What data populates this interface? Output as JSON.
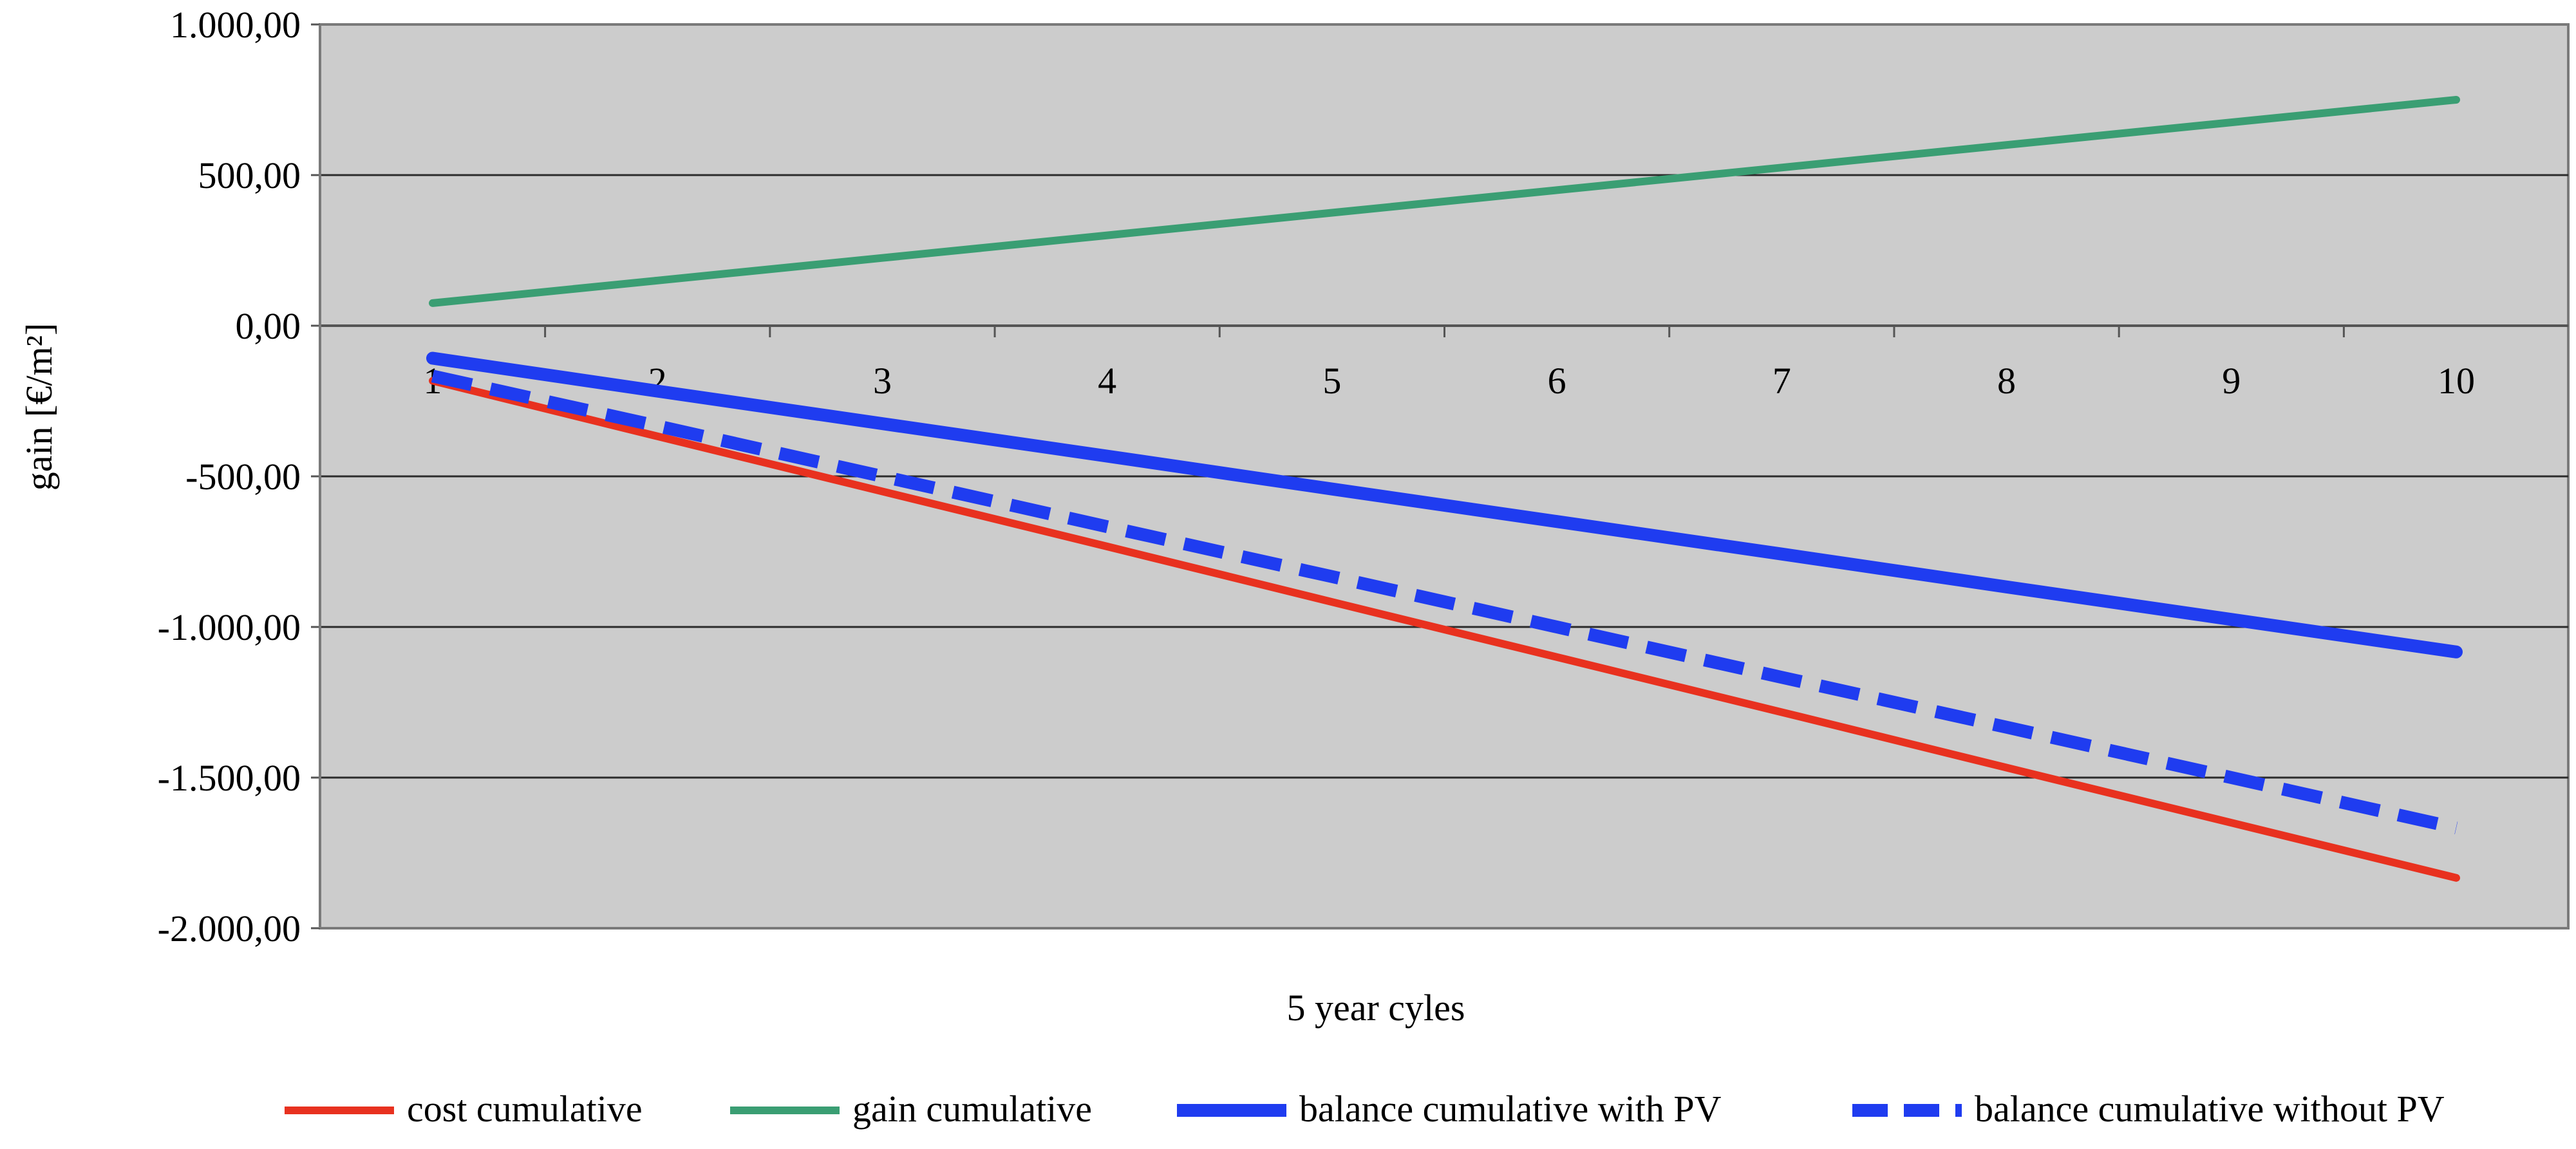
{
  "chart_data": {
    "type": "line",
    "x": [
      1,
      2,
      3,
      4,
      5,
      6,
      7,
      8,
      9,
      10
    ],
    "categories": [
      "1",
      "2",
      "3",
      "4",
      "5",
      "6",
      "7",
      "8",
      "9",
      "10"
    ],
    "xlabel": "5 year cyles",
    "ylabel": "gain [€/m²]",
    "ylim": [
      -2000,
      1000
    ],
    "yticks": [
      1000,
      500,
      0,
      -500,
      -1000,
      -1500,
      -2000
    ],
    "ytick_labels": [
      "1.000,00",
      "500,00",
      "0,00",
      "-500,00",
      "-1.000,00",
      "-1.500,00",
      "-2.000,00"
    ],
    "negative_tick_color": "#e8261c",
    "positive_tick_color": "#000000",
    "plot_background": "#cccccc",
    "grid": "horizontal",
    "legend_position": "bottom",
    "series": [
      {
        "name": "cost cumulative",
        "color": "#e8311f",
        "style": "solid",
        "weight": "thin",
        "values": [
          -183,
          -367,
          -550,
          -733,
          -917,
          -1100,
          -1283,
          -1467,
          -1650,
          -1833
        ]
      },
      {
        "name": "gain cumulative",
        "color": "#3a9e73",
        "style": "solid",
        "weight": "thin",
        "values": [
          75,
          150,
          225,
          300,
          375,
          450,
          525,
          600,
          675,
          750
        ]
      },
      {
        "name": "balance cumulative with PV",
        "color": "#1f3cf0",
        "style": "solid",
        "weight": "thick",
        "values": [
          -108,
          -217,
          -325,
          -433,
          -542,
          -650,
          -758,
          -867,
          -975,
          -1083
        ]
      },
      {
        "name": "balance cumulative without PV",
        "color": "#1f3cf0",
        "style": "dashed",
        "weight": "thick",
        "values": [
          -167,
          -333,
          -500,
          -667,
          -833,
          -1000,
          -1167,
          -1333,
          -1500,
          -1667
        ]
      }
    ]
  }
}
